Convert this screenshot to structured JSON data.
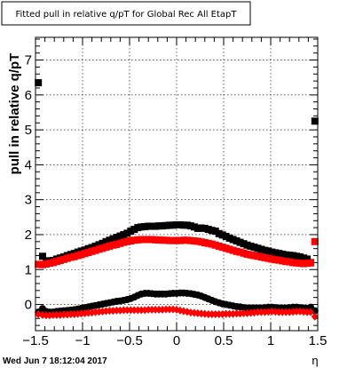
{
  "chart_data": {
    "type": "scatter",
    "title": "Fitted pull in relative q/pT for Global Rec All EtapT",
    "xlabel": "η",
    "ylabel": "pull in relative q/pT",
    "xlim": [
      -1.5,
      1.5
    ],
    "ylim": [
      -0.75,
      7.65
    ],
    "x_ticks": [
      "−1.5",
      "−1",
      "−0.5",
      "0",
      "0.5",
      "1",
      "1.5"
    ],
    "x_tick_values": [
      -1.5,
      -1,
      -0.5,
      0,
      0.5,
      1,
      1.5
    ],
    "y_ticks": [
      "0",
      "1",
      "2",
      "3",
      "4",
      "5",
      "6",
      "7"
    ],
    "y_tick_values": [
      0,
      1,
      2,
      3,
      4,
      5,
      6,
      7
    ],
    "grid": true,
    "timestamp": "Wed Jun  7 18:12:04 2017",
    "series": [
      {
        "marker": "square",
        "color": "#000000",
        "x": [
          -1.47,
          -1.425,
          -1.3875,
          -1.35,
          -1.3125,
          -1.275,
          -1.2375,
          -1.2,
          -1.1625,
          -1.125,
          -1.0875,
          -1.05,
          -1.0125,
          -0.975,
          -0.9375,
          -0.9,
          -0.8625,
          -0.825,
          -0.7875,
          -0.75,
          -0.7125,
          -0.675,
          -0.6375,
          -0.6,
          -0.5625,
          -0.525,
          -0.4875,
          -0.45,
          -0.4125,
          -0.375,
          -0.3375,
          -0.3,
          -0.2625,
          -0.225,
          -0.1875,
          -0.15,
          -0.1125,
          -0.075,
          -0.0375,
          0.0,
          0.0375,
          0.075,
          0.1125,
          0.15,
          0.1875,
          0.225,
          0.2625,
          0.3,
          0.3375,
          0.375,
          0.4125,
          0.45,
          0.4875,
          0.525,
          0.5625,
          0.6,
          0.6375,
          0.675,
          0.7125,
          0.75,
          0.7875,
          0.825,
          0.8625,
          0.9,
          0.9375,
          0.975,
          1.0125,
          1.05,
          1.0875,
          1.125,
          1.1625,
          1.2,
          1.2375,
          1.275,
          1.3125,
          1.35,
          1.3875,
          1.425,
          1.47
        ],
        "y": [
          6.35,
          1.38,
          1.25,
          1.25,
          1.26,
          1.3,
          1.33,
          1.36,
          1.4,
          1.43,
          1.46,
          1.5,
          1.53,
          1.56,
          1.6,
          1.63,
          1.67,
          1.71,
          1.75,
          1.8,
          1.84,
          1.88,
          1.92,
          1.96,
          2.0,
          2.04,
          2.1,
          2.15,
          2.2,
          2.22,
          2.23,
          2.24,
          2.24,
          2.24,
          2.25,
          2.25,
          2.26,
          2.27,
          2.27,
          2.28,
          2.28,
          2.27,
          2.27,
          2.25,
          2.22,
          2.18,
          2.19,
          2.18,
          2.15,
          2.12,
          2.1,
          2.03,
          1.99,
          1.95,
          1.9,
          1.86,
          1.82,
          1.78,
          1.74,
          1.7,
          1.67,
          1.64,
          1.61,
          1.58,
          1.55,
          1.53,
          1.5,
          1.48,
          1.46,
          1.44,
          1.42,
          1.41,
          1.4,
          1.38,
          1.36,
          1.33,
          1.3,
          1.2,
          5.25
        ]
      },
      {
        "marker": "square",
        "color": "#ff0000",
        "x": [
          -1.47,
          -1.425,
          -1.3875,
          -1.35,
          -1.3125,
          -1.275,
          -1.2375,
          -1.2,
          -1.1625,
          -1.125,
          -1.0875,
          -1.05,
          -1.0125,
          -0.975,
          -0.9375,
          -0.9,
          -0.8625,
          -0.825,
          -0.7875,
          -0.75,
          -0.7125,
          -0.675,
          -0.6375,
          -0.6,
          -0.5625,
          -0.525,
          -0.4875,
          -0.45,
          -0.4125,
          -0.375,
          -0.3375,
          -0.3,
          -0.2625,
          -0.225,
          -0.1875,
          -0.15,
          -0.1125,
          -0.075,
          -0.0375,
          0.0,
          0.0375,
          0.075,
          0.1125,
          0.15,
          0.1875,
          0.225,
          0.2625,
          0.3,
          0.3375,
          0.375,
          0.4125,
          0.45,
          0.4875,
          0.525,
          0.5625,
          0.6,
          0.6375,
          0.675,
          0.7125,
          0.75,
          0.7875,
          0.825,
          0.8625,
          0.9,
          0.9375,
          0.975,
          1.0125,
          1.05,
          1.0875,
          1.125,
          1.1625,
          1.2,
          1.2375,
          1.275,
          1.3125,
          1.35,
          1.3875,
          1.425,
          1.47
        ],
        "y": [
          1.15,
          1.14,
          1.16,
          1.18,
          1.2,
          1.23,
          1.26,
          1.29,
          1.32,
          1.35,
          1.37,
          1.4,
          1.43,
          1.46,
          1.49,
          1.52,
          1.55,
          1.58,
          1.61,
          1.64,
          1.67,
          1.7,
          1.72,
          1.75,
          1.78,
          1.8,
          1.82,
          1.84,
          1.85,
          1.86,
          1.86,
          1.86,
          1.86,
          1.85,
          1.85,
          1.84,
          1.84,
          1.83,
          1.83,
          1.83,
          1.83,
          1.84,
          1.84,
          1.83,
          1.82,
          1.81,
          1.79,
          1.77,
          1.75,
          1.73,
          1.7,
          1.67,
          1.64,
          1.61,
          1.58,
          1.55,
          1.52,
          1.5,
          1.47,
          1.44,
          1.42,
          1.4,
          1.38,
          1.36,
          1.34,
          1.32,
          1.3,
          1.28,
          1.27,
          1.25,
          1.23,
          1.22,
          1.2,
          1.19,
          1.18,
          1.17,
          1.18,
          1.19,
          1.8
        ]
      },
      {
        "marker": "circle",
        "color": "#000000",
        "x": [
          -1.47,
          -1.425,
          -1.3875,
          -1.35,
          -1.3125,
          -1.275,
          -1.2375,
          -1.2,
          -1.1625,
          -1.125,
          -1.0875,
          -1.05,
          -1.0125,
          -0.975,
          -0.9375,
          -0.9,
          -0.8625,
          -0.825,
          -0.7875,
          -0.75,
          -0.7125,
          -0.675,
          -0.6375,
          -0.6,
          -0.5625,
          -0.525,
          -0.4875,
          -0.45,
          -0.4125,
          -0.375,
          -0.3375,
          -0.3,
          -0.2625,
          -0.225,
          -0.1875,
          -0.15,
          -0.1125,
          -0.075,
          -0.0375,
          0.0,
          0.0375,
          0.075,
          0.1125,
          0.15,
          0.1875,
          0.225,
          0.2625,
          0.3,
          0.3375,
          0.375,
          0.4125,
          0.45,
          0.4875,
          0.525,
          0.5625,
          0.6,
          0.6375,
          0.675,
          0.7125,
          0.75,
          0.7875,
          0.825,
          0.8625,
          0.9,
          0.9375,
          0.975,
          1.0125,
          1.05,
          1.0875,
          1.125,
          1.1625,
          1.2,
          1.2375,
          1.275,
          1.3125,
          1.35,
          1.3875,
          1.425,
          1.47
        ],
        "y": [
          -0.22,
          -0.12,
          -0.2,
          -0.22,
          -0.22,
          -0.2,
          -0.19,
          -0.18,
          -0.17,
          -0.16,
          -0.15,
          -0.13,
          -0.11,
          -0.09,
          -0.07,
          -0.05,
          -0.03,
          -0.01,
          0.01,
          0.03,
          0.05,
          0.07,
          0.09,
          0.1,
          0.12,
          0.14,
          0.17,
          0.21,
          0.26,
          0.3,
          0.32,
          0.32,
          0.31,
          0.3,
          0.3,
          0.3,
          0.3,
          0.31,
          0.32,
          0.32,
          0.33,
          0.33,
          0.32,
          0.31,
          0.29,
          0.27,
          0.24,
          0.2,
          0.16,
          0.12,
          0.08,
          0.05,
          0.02,
          0.0,
          -0.02,
          -0.04,
          -0.06,
          -0.07,
          -0.09,
          -0.1,
          -0.1,
          -0.1,
          -0.1,
          -0.1,
          -0.09,
          -0.08,
          -0.08,
          -0.09,
          -0.1,
          -0.1,
          -0.1,
          -0.09,
          -0.08,
          -0.08,
          -0.09,
          -0.1,
          -0.11,
          -0.08,
          -0.18
        ]
      },
      {
        "marker": "diamond",
        "color": "#ff0000",
        "x": [
          -1.47,
          -1.425,
          -1.3875,
          -1.35,
          -1.3125,
          -1.275,
          -1.2375,
          -1.2,
          -1.1625,
          -1.125,
          -1.0875,
          -1.05,
          -1.0125,
          -0.975,
          -0.9375,
          -0.9,
          -0.8625,
          -0.825,
          -0.7875,
          -0.75,
          -0.7125,
          -0.675,
          -0.6375,
          -0.6,
          -0.5625,
          -0.525,
          -0.4875,
          -0.45,
          -0.4125,
          -0.375,
          -0.3375,
          -0.3,
          -0.2625,
          -0.225,
          -0.1875,
          -0.15,
          -0.1125,
          -0.075,
          -0.0375,
          0.0,
          0.0375,
          0.075,
          0.1125,
          0.15,
          0.1875,
          0.225,
          0.2625,
          0.3,
          0.3375,
          0.375,
          0.4125,
          0.45,
          0.4875,
          0.525,
          0.5625,
          0.6,
          0.6375,
          0.675,
          0.7125,
          0.75,
          0.7875,
          0.825,
          0.8625,
          0.9,
          0.9375,
          0.975,
          1.0125,
          1.05,
          1.0875,
          1.125,
          1.1625,
          1.2,
          1.2375,
          1.275,
          1.3125,
          1.35,
          1.3875,
          1.425,
          1.47
        ],
        "y": [
          -0.28,
          -0.3,
          -0.31,
          -0.31,
          -0.3,
          -0.3,
          -0.3,
          -0.29,
          -0.29,
          -0.28,
          -0.28,
          -0.27,
          -0.26,
          -0.25,
          -0.24,
          -0.23,
          -0.22,
          -0.21,
          -0.2,
          -0.19,
          -0.18,
          -0.18,
          -0.17,
          -0.17,
          -0.16,
          -0.16,
          -0.16,
          -0.16,
          -0.16,
          -0.16,
          -0.16,
          -0.15,
          -0.15,
          -0.15,
          -0.15,
          -0.15,
          -0.14,
          -0.14,
          -0.14,
          -0.15,
          -0.17,
          -0.19,
          -0.21,
          -0.23,
          -0.24,
          -0.25,
          -0.26,
          -0.27,
          -0.28,
          -0.28,
          -0.28,
          -0.28,
          -0.28,
          -0.27,
          -0.27,
          -0.27,
          -0.26,
          -0.26,
          -0.25,
          -0.25,
          -0.24,
          -0.23,
          -0.22,
          -0.22,
          -0.22,
          -0.21,
          -0.2,
          -0.21,
          -0.22,
          -0.22,
          -0.22,
          -0.22,
          -0.21,
          -0.2,
          -0.2,
          -0.21,
          -0.22,
          -0.22,
          -0.35
        ]
      }
    ]
  }
}
